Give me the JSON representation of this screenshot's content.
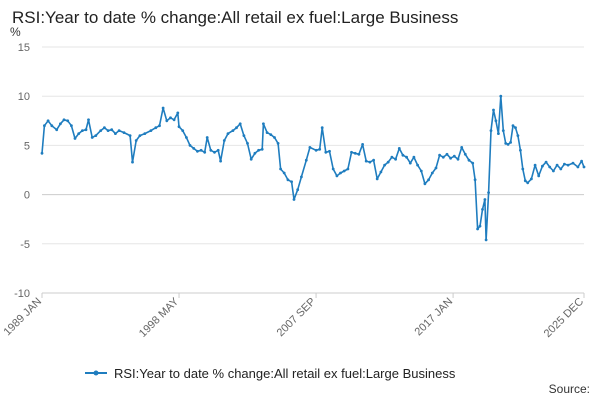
{
  "header": {
    "title": "RSI:Year to date % change:All retail ex fuel:Large Business"
  },
  "footer": {
    "source_label": "Source:"
  },
  "colors": {
    "series": "#1f7dbf",
    "grid": "#e6e6e6",
    "zero": "#cccccc"
  },
  "chart_data": {
    "type": "line",
    "title": "RSI:Year to date % change:All retail ex fuel:Large Business",
    "unit_label": "%",
    "ylim": [
      -10,
      15
    ],
    "yticks": [
      15,
      10,
      5,
      0,
      -5,
      -10
    ],
    "x_range": [
      "1989 JAN",
      "2025 DEC"
    ],
    "xticks": [
      "1989 JAN",
      "1998 MAY",
      "2007 SEP",
      "2017 JAN",
      "2025 DEC"
    ],
    "grid": "horizontal",
    "legend": "bottom",
    "series": [
      {
        "name": "RSI:Year to date % change:All retail ex fuel:Large Business",
        "points": [
          [
            "1989 JAN",
            4.2
          ],
          [
            "1989 MAR",
            7.0
          ],
          [
            "1989 JUN",
            7.5
          ],
          [
            "1989 SEP",
            7.0
          ],
          [
            "1990 JAN",
            6.6
          ],
          [
            "1990 APR",
            7.2
          ],
          [
            "1990 JUL",
            7.6
          ],
          [
            "1990 OCT",
            7.5
          ],
          [
            "1991 JAN",
            7.0
          ],
          [
            "1991 APR",
            5.7
          ],
          [
            "1991 JUL",
            6.2
          ],
          [
            "1991 OCT",
            6.5
          ],
          [
            "1992 JAN",
            6.6
          ],
          [
            "1992 MAR",
            7.6
          ],
          [
            "1992 JUN",
            5.8
          ],
          [
            "1992 SEP",
            6.0
          ],
          [
            "1993 JAN",
            6.5
          ],
          [
            "1993 APR",
            6.8
          ],
          [
            "1993 JUL",
            6.5
          ],
          [
            "1993 OCT",
            6.6
          ],
          [
            "1994 JAN",
            6.2
          ],
          [
            "1994 APR",
            6.5
          ],
          [
            "1994 AUG",
            6.3
          ],
          [
            "1995 JAN",
            6.0
          ],
          [
            "1995 MAR",
            3.3
          ],
          [
            "1995 JUN",
            5.5
          ],
          [
            "1995 SEP",
            6.0
          ],
          [
            "1996 JAN",
            6.2
          ],
          [
            "1996 JUN",
            6.5
          ],
          [
            "1996 OCT",
            6.8
          ],
          [
            "1997 JAN",
            7.0
          ],
          [
            "1997 APR",
            8.8
          ],
          [
            "1997 JUL",
            7.5
          ],
          [
            "1997 OCT",
            7.8
          ],
          [
            "1998 JAN",
            7.6
          ],
          [
            "1998 APR",
            8.3
          ],
          [
            "1998 MAY",
            6.9
          ],
          [
            "1998 AUG",
            6.5
          ],
          [
            "1998 NOV",
            5.8
          ],
          [
            "1999 FEB",
            5.0
          ],
          [
            "1999 MAY",
            4.7
          ],
          [
            "1999 AUG",
            4.4
          ],
          [
            "1999 NOV",
            4.5
          ],
          [
            "2000 FEB",
            4.3
          ],
          [
            "2000 APR",
            5.8
          ],
          [
            "2000 JUL",
            4.5
          ],
          [
            "2000 OCT",
            4.3
          ],
          [
            "2001 JAN",
            4.5
          ],
          [
            "2001 MAR",
            3.4
          ],
          [
            "2001 JUN",
            5.5
          ],
          [
            "2001 SEP",
            6.2
          ],
          [
            "2002 JAN",
            6.5
          ],
          [
            "2002 APR",
            6.8
          ],
          [
            "2002 JUL",
            7.2
          ],
          [
            "2002 OCT",
            6.0
          ],
          [
            "2003 JAN",
            5.2
          ],
          [
            "2003 APR",
            3.6
          ],
          [
            "2003 JUL",
            4.2
          ],
          [
            "2003 OCT",
            4.5
          ],
          [
            "2004 JAN",
            4.6
          ],
          [
            "2004 FEB",
            7.2
          ],
          [
            "2004 MAY",
            6.3
          ],
          [
            "2004 AUG",
            6.1
          ],
          [
            "2004 NOV",
            5.8
          ],
          [
            "2005 FEB",
            5.2
          ],
          [
            "2005 APR",
            2.6
          ],
          [
            "2005 JUL",
            2.2
          ],
          [
            "2005 OCT",
            1.5
          ],
          [
            "2006 JAN",
            1.3
          ],
          [
            "2006 MAR",
            -0.5
          ],
          [
            "2006 JUN",
            0.5
          ],
          [
            "2006 SEP",
            1.8
          ],
          [
            "2007 JAN",
            3.5
          ],
          [
            "2007 APR",
            4.8
          ],
          [
            "2007 SEP",
            4.5
          ],
          [
            "2007 DEC",
            4.6
          ],
          [
            "2008 FEB",
            6.8
          ],
          [
            "2008 MAY",
            4.3
          ],
          [
            "2008 AUG",
            4.4
          ],
          [
            "2008 NOV",
            2.6
          ],
          [
            "2009 FEB",
            1.9
          ],
          [
            "2009 MAY",
            2.2
          ],
          [
            "2009 AUG",
            2.4
          ],
          [
            "2009 NOV",
            2.6
          ],
          [
            "2010 FEB",
            4.3
          ],
          [
            "2010 MAY",
            4.2
          ],
          [
            "2010 AUG",
            4.1
          ],
          [
            "2010 NOV",
            5.1
          ],
          [
            "2011 FEB",
            3.4
          ],
          [
            "2011 MAY",
            3.3
          ],
          [
            "2011 AUG",
            3.5
          ],
          [
            "2011 NOV",
            1.6
          ],
          [
            "2012 FEB",
            2.3
          ],
          [
            "2012 MAY",
            3.0
          ],
          [
            "2012 AUG",
            3.3
          ],
          [
            "2012 NOV",
            3.8
          ],
          [
            "2013 FEB",
            3.6
          ],
          [
            "2013 MAY",
            4.7
          ],
          [
            "2013 AUG",
            4.0
          ],
          [
            "2013 NOV",
            3.8
          ],
          [
            "2014 FEB",
            3.2
          ],
          [
            "2014 MAY",
            3.8
          ],
          [
            "2014 AUG",
            3.0
          ],
          [
            "2014 NOV",
            2.4
          ],
          [
            "2015 FEB",
            1.1
          ],
          [
            "2015 MAY",
            1.5
          ],
          [
            "2015 AUG",
            2.2
          ],
          [
            "2015 NOV",
            2.7
          ],
          [
            "2016 FEB",
            4.0
          ],
          [
            "2016 MAY",
            3.8
          ],
          [
            "2016 AUG",
            4.1
          ],
          [
            "2016 NOV",
            3.7
          ],
          [
            "2017 FEB",
            3.9
          ],
          [
            "2017 MAY",
            3.6
          ],
          [
            "2017 AUG",
            4.8
          ],
          [
            "2017 NOV",
            4.1
          ],
          [
            "2018 FEB",
            3.5
          ],
          [
            "2018 MAY",
            3.2
          ],
          [
            "2018 JUL",
            1.5
          ],
          [
            "2018 SEP",
            -3.5
          ],
          [
            "2018 NOV",
            -3.2
          ],
          [
            "2019 JAN",
            -1.5
          ],
          [
            "2019 MAR",
            -0.5
          ],
          [
            "2019 APR",
            -4.6
          ],
          [
            "2019 JUN",
            0.2
          ],
          [
            "2019 AUG",
            6.5
          ],
          [
            "2019 OCT",
            8.6
          ],
          [
            "2019 DEC",
            7.5
          ],
          [
            "2020 FEB",
            6.2
          ],
          [
            "2020 APR",
            10.0
          ],
          [
            "2020 JUN",
            6.5
          ],
          [
            "2020 AUG",
            5.2
          ],
          [
            "2020 OCT",
            5.1
          ],
          [
            "2020 DEC",
            5.3
          ],
          [
            "2021 FEB",
            7.0
          ],
          [
            "2021 APR",
            6.8
          ],
          [
            "2021 JUN",
            6.0
          ],
          [
            "2021 AUG",
            4.5
          ],
          [
            "2021 OCT",
            2.6
          ],
          [
            "2021 DEC",
            1.4
          ],
          [
            "2022 FEB",
            1.2
          ],
          [
            "2022 MAY",
            1.6
          ],
          [
            "2022 AUG",
            3.0
          ],
          [
            "2022 NOV",
            1.9
          ],
          [
            "2023 FEB",
            2.9
          ],
          [
            "2023 MAY",
            3.3
          ],
          [
            "2023 AUG",
            2.8
          ],
          [
            "2023 NOV",
            2.4
          ],
          [
            "2024 FEB",
            3.0
          ],
          [
            "2024 MAY",
            2.6
          ],
          [
            "2024 AUG",
            3.1
          ],
          [
            "2024 NOV",
            3.0
          ],
          [
            "2025 MAR",
            3.2
          ],
          [
            "2025 JUL",
            2.8
          ],
          [
            "2025 OCT",
            3.4
          ],
          [
            "2025 DEC",
            2.8
          ]
        ]
      }
    ]
  }
}
